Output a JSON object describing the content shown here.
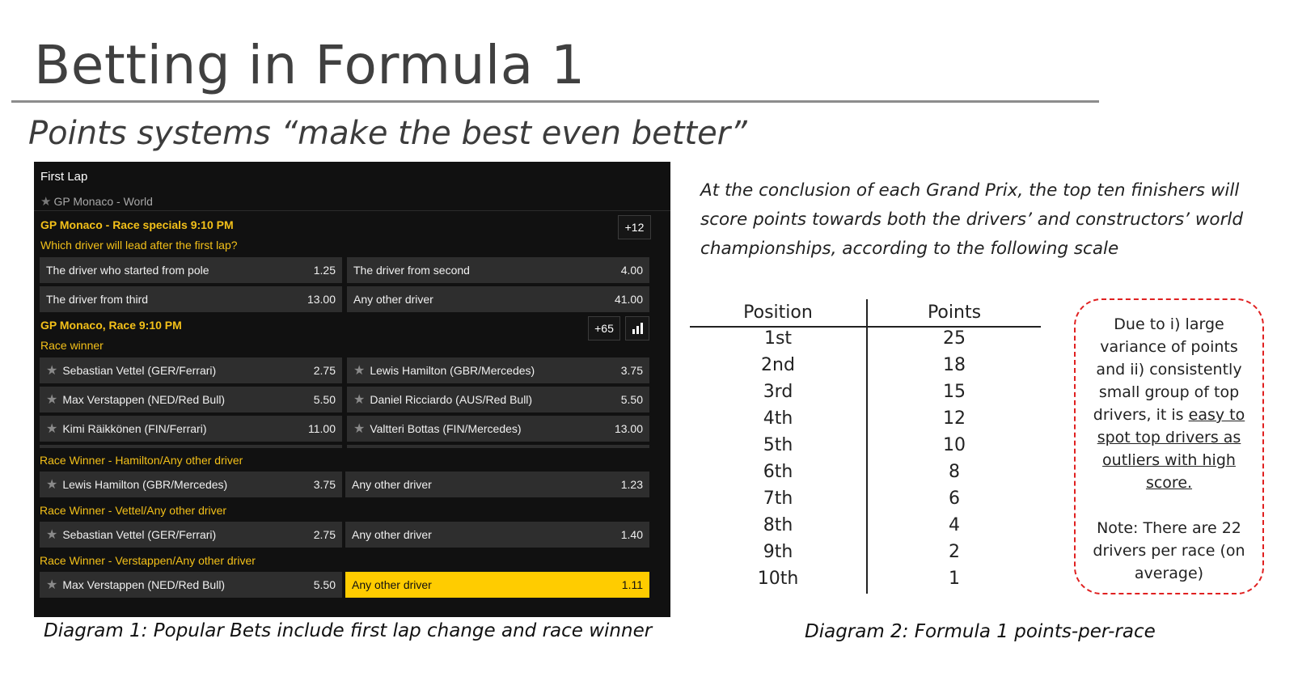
{
  "slide": {
    "title": "Betting in Formula 1",
    "subtitle": "Points systems “make the best even better”"
  },
  "panel": {
    "header": "First Lap",
    "breadcrumb": "GP Monaco - World",
    "market1": {
      "title": "GP Monaco - Race specials 9:10 PM",
      "more": "+12",
      "question": "Which driver will lead after the first lap?",
      "options": [
        {
          "label": "The driver who started from pole",
          "odds": "1.25"
        },
        {
          "label": "The driver from second",
          "odds": "4.00"
        },
        {
          "label": "The driver from third",
          "odds": "13.00"
        },
        {
          "label": "Any other driver",
          "odds": "41.00"
        }
      ]
    },
    "market2": {
      "title": "GP Monaco, Race 9:10 PM",
      "more": "+65",
      "question": "Race winner",
      "options": [
        {
          "label": "Sebastian Vettel (GER/Ferrari)",
          "odds": "2.75"
        },
        {
          "label": "Lewis Hamilton (GBR/Mercedes)",
          "odds": "3.75"
        },
        {
          "label": "Max Verstappen (NED/Red Bull)",
          "odds": "5.50"
        },
        {
          "label": "Daniel Ricciardo (AUS/Red Bull)",
          "odds": "5.50"
        },
        {
          "label": "Kimi Räikkönen (FIN/Ferrari)",
          "odds": "11.00"
        },
        {
          "label": "Valtteri Bottas (FIN/Mercedes)",
          "odds": "13.00"
        }
      ]
    },
    "market3": {
      "title": "Race Winner - Hamilton/Any other driver",
      "options": [
        {
          "label": "Lewis Hamilton (GBR/Mercedes)",
          "odds": "3.75"
        },
        {
          "label": "Any other driver",
          "odds": "1.23"
        }
      ]
    },
    "market4": {
      "title": "Race Winner - Vettel/Any other driver",
      "options": [
        {
          "label": "Sebastian Vettel (GER/Ferrari)",
          "odds": "2.75"
        },
        {
          "label": "Any other driver",
          "odds": "1.40"
        }
      ]
    },
    "market5": {
      "title": "Race Winner - Verstappen/Any other driver",
      "options": [
        {
          "label": "Max Verstappen (NED/Red Bull)",
          "odds": "5.50"
        },
        {
          "label": "Any other driver",
          "odds": "1.11"
        }
      ]
    },
    "colors": {
      "background": "#111111",
      "cell": "#2e2e2e",
      "accent": "#f3c019",
      "selected": "#ffcc00"
    },
    "icons": {
      "star": "star-icon",
      "stats": "bar-chart-icon"
    }
  },
  "caption1": "Diagram 1: Popular Bets include first lap change and race winner",
  "intro": "At the conclusion of each Grand Prix, the top ten finishers will score points towards both the drivers’ and constructors’ world championships, according to the following scale",
  "points_table": {
    "headers": [
      "Position",
      "Points"
    ],
    "rows": [
      [
        "1st",
        "25"
      ],
      [
        "2nd",
        "18"
      ],
      [
        "3rd",
        "15"
      ],
      [
        "4th",
        "12"
      ],
      [
        "5th",
        "10"
      ],
      [
        "6th",
        "8"
      ],
      [
        "7th",
        "6"
      ],
      [
        "8th",
        "4"
      ],
      [
        "9th",
        "2"
      ],
      [
        "10th",
        "1"
      ]
    ]
  },
  "note": {
    "text_before": "Due to i) large variance of points and ii) consistently small group of top drivers, it is ",
    "underlined": "easy to spot top drivers as outliers with high score.",
    "note2": "Note: There are 22 drivers per race (on average)",
    "border_color": "#e02020"
  },
  "caption2": "Diagram 2: Formula 1 points-per-race"
}
